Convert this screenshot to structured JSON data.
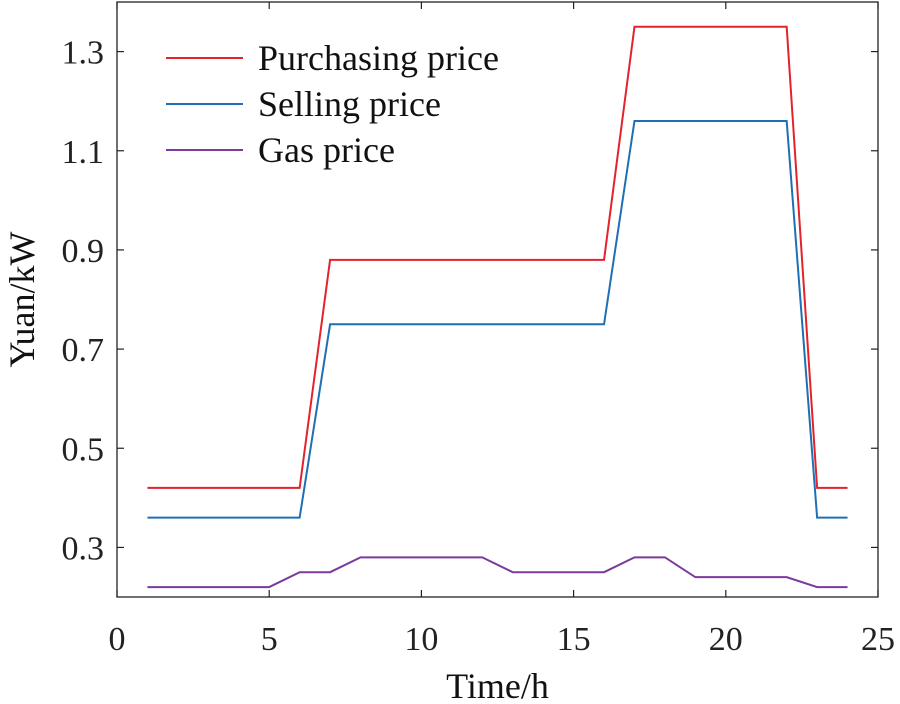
{
  "chart_data": {
    "type": "line",
    "title": "",
    "xlabel": "Time/h",
    "ylabel": "Yuan/kW",
    "xlim": [
      0,
      25
    ],
    "ylim": [
      0.2,
      1.4
    ],
    "xticks": [
      0,
      5,
      10,
      15,
      20,
      25
    ],
    "yticks": [
      0.3,
      0.5,
      0.7,
      0.9,
      1.1,
      1.3
    ],
    "xtick_labels": [
      "0",
      "5",
      "10",
      "15",
      "20",
      "25"
    ],
    "ytick_labels": [
      "0.3",
      "0.5",
      "0.7",
      "0.9",
      "1.1",
      "1.3"
    ],
    "grid": false,
    "legend_position": "top-left",
    "x": [
      1,
      2,
      3,
      4,
      5,
      6,
      7,
      8,
      9,
      10,
      11,
      12,
      13,
      14,
      15,
      16,
      17,
      18,
      19,
      20,
      21,
      22,
      23,
      24
    ],
    "series": [
      {
        "name": "Purchasing price",
        "color": "#e3232c",
        "values": [
          0.42,
          0.42,
          0.42,
          0.42,
          0.42,
          0.42,
          0.88,
          0.88,
          0.88,
          0.88,
          0.88,
          0.88,
          0.88,
          0.88,
          0.88,
          0.88,
          1.35,
          1.35,
          1.35,
          1.35,
          1.35,
          1.35,
          0.42,
          0.42
        ]
      },
      {
        "name": "Selling price",
        "color": "#1f6fb4",
        "values": [
          0.36,
          0.36,
          0.36,
          0.36,
          0.36,
          0.36,
          0.75,
          0.75,
          0.75,
          0.75,
          0.75,
          0.75,
          0.75,
          0.75,
          0.75,
          0.75,
          1.16,
          1.16,
          1.16,
          1.16,
          1.16,
          1.16,
          0.36,
          0.36
        ]
      },
      {
        "name": "Gas price",
        "color": "#7b3a9c",
        "values": [
          0.22,
          0.22,
          0.22,
          0.22,
          0.22,
          0.25,
          0.25,
          0.28,
          0.28,
          0.28,
          0.28,
          0.28,
          0.25,
          0.25,
          0.25,
          0.25,
          0.28,
          0.28,
          0.24,
          0.24,
          0.24,
          0.24,
          0.22,
          0.22
        ]
      }
    ]
  }
}
